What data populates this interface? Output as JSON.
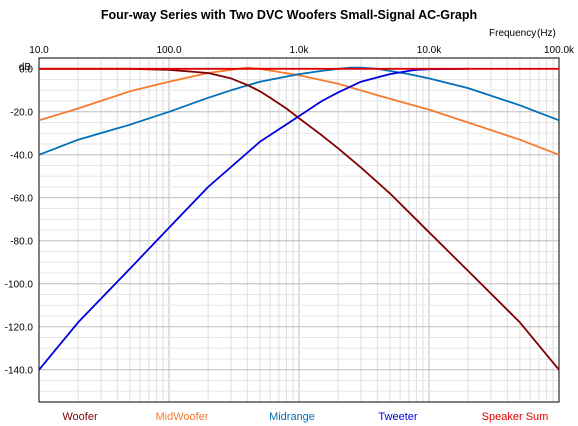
{
  "chart_data": {
    "type": "line",
    "title": "Four-way Series with Two DVC Woofers Small-Signal AC-Graph",
    "xlabel": "Frequency",
    "xunit": "(Hz)",
    "ylabel": "dB",
    "xscale": "log",
    "xlim": [
      10,
      100000
    ],
    "ylim": [
      -155,
      5
    ],
    "x_ticks": [
      {
        "value": 10,
        "label": "10.0"
      },
      {
        "value": 100,
        "label": "100.0"
      },
      {
        "value": 1000,
        "label": "1.0k"
      },
      {
        "value": 10000,
        "label": "10.0k"
      },
      {
        "value": 100000,
        "label": "100.0k"
      }
    ],
    "y_ticks": [
      {
        "value": 0,
        "label": "0.0"
      },
      {
        "value": -20,
        "label": "-20.0"
      },
      {
        "value": -40,
        "label": "-40.0"
      },
      {
        "value": -60,
        "label": "-60.0"
      },
      {
        "value": -80,
        "label": "-80.0"
      },
      {
        "value": -100,
        "label": "-100.0"
      },
      {
        "value": -120,
        "label": "-120.0"
      },
      {
        "value": -140,
        "label": "-140.0"
      }
    ],
    "grid": true,
    "legend_position": "bottom",
    "series": [
      {
        "name": "Woofer",
        "color": "#800000",
        "x": [
          10,
          50,
          100,
          200,
          300,
          400,
          500,
          600,
          800,
          1000,
          1500,
          2000,
          3000,
          5000,
          10000,
          20000,
          50000,
          100000
        ],
        "y": [
          0,
          0,
          -0.5,
          -2,
          -4.5,
          -7.5,
          -10.5,
          -13.5,
          -18.5,
          -23,
          -31,
          -37,
          -46,
          -58,
          -76,
          -94,
          -118,
          -140
        ]
      },
      {
        "name": "MidWoofer",
        "color": "#f47b30",
        "x": [
          10,
          20,
          50,
          100,
          200,
          300,
          400,
          500,
          700,
          1000,
          2000,
          5000,
          10000,
          20000,
          50000,
          100000
        ],
        "y": [
          -24,
          -18.5,
          -10.5,
          -6,
          -2,
          -0.5,
          0.5,
          0,
          -1.5,
          -3,
          -7,
          -14,
          -19,
          -25,
          -33,
          -40
        ]
      },
      {
        "name": "Midrange",
        "color": "#0070b8",
        "x": [
          10,
          20,
          50,
          100,
          200,
          300,
          500,
          1000,
          1500,
          2000,
          2500,
          3000,
          4000,
          5000,
          7000,
          10000,
          20000,
          50000,
          100000
        ],
        "y": [
          -40,
          -33,
          -26,
          -20,
          -13.5,
          -10,
          -6,
          -2.5,
          -1,
          0,
          0.5,
          0.5,
          0,
          -1,
          -2.5,
          -4.5,
          -9,
          -17,
          -24
        ]
      },
      {
        "name": "Tweeter",
        "color": "#0000e0",
        "x": [
          10,
          20,
          50,
          100,
          200,
          500,
          1000,
          1500,
          2000,
          3000,
          5000,
          7000,
          8000,
          10000,
          20000
        ],
        "y": [
          -140,
          -118,
          -93,
          -74,
          -55,
          -34,
          -22,
          -15,
          -11,
          -6,
          -2.5,
          -1,
          -0.5,
          -0.2,
          0
        ]
      },
      {
        "name": "Speaker Sum",
        "color": "#e00000",
        "x": [
          10,
          100,
          1000,
          10000,
          100000
        ],
        "y": [
          0,
          0,
          0,
          0,
          0
        ]
      }
    ]
  }
}
